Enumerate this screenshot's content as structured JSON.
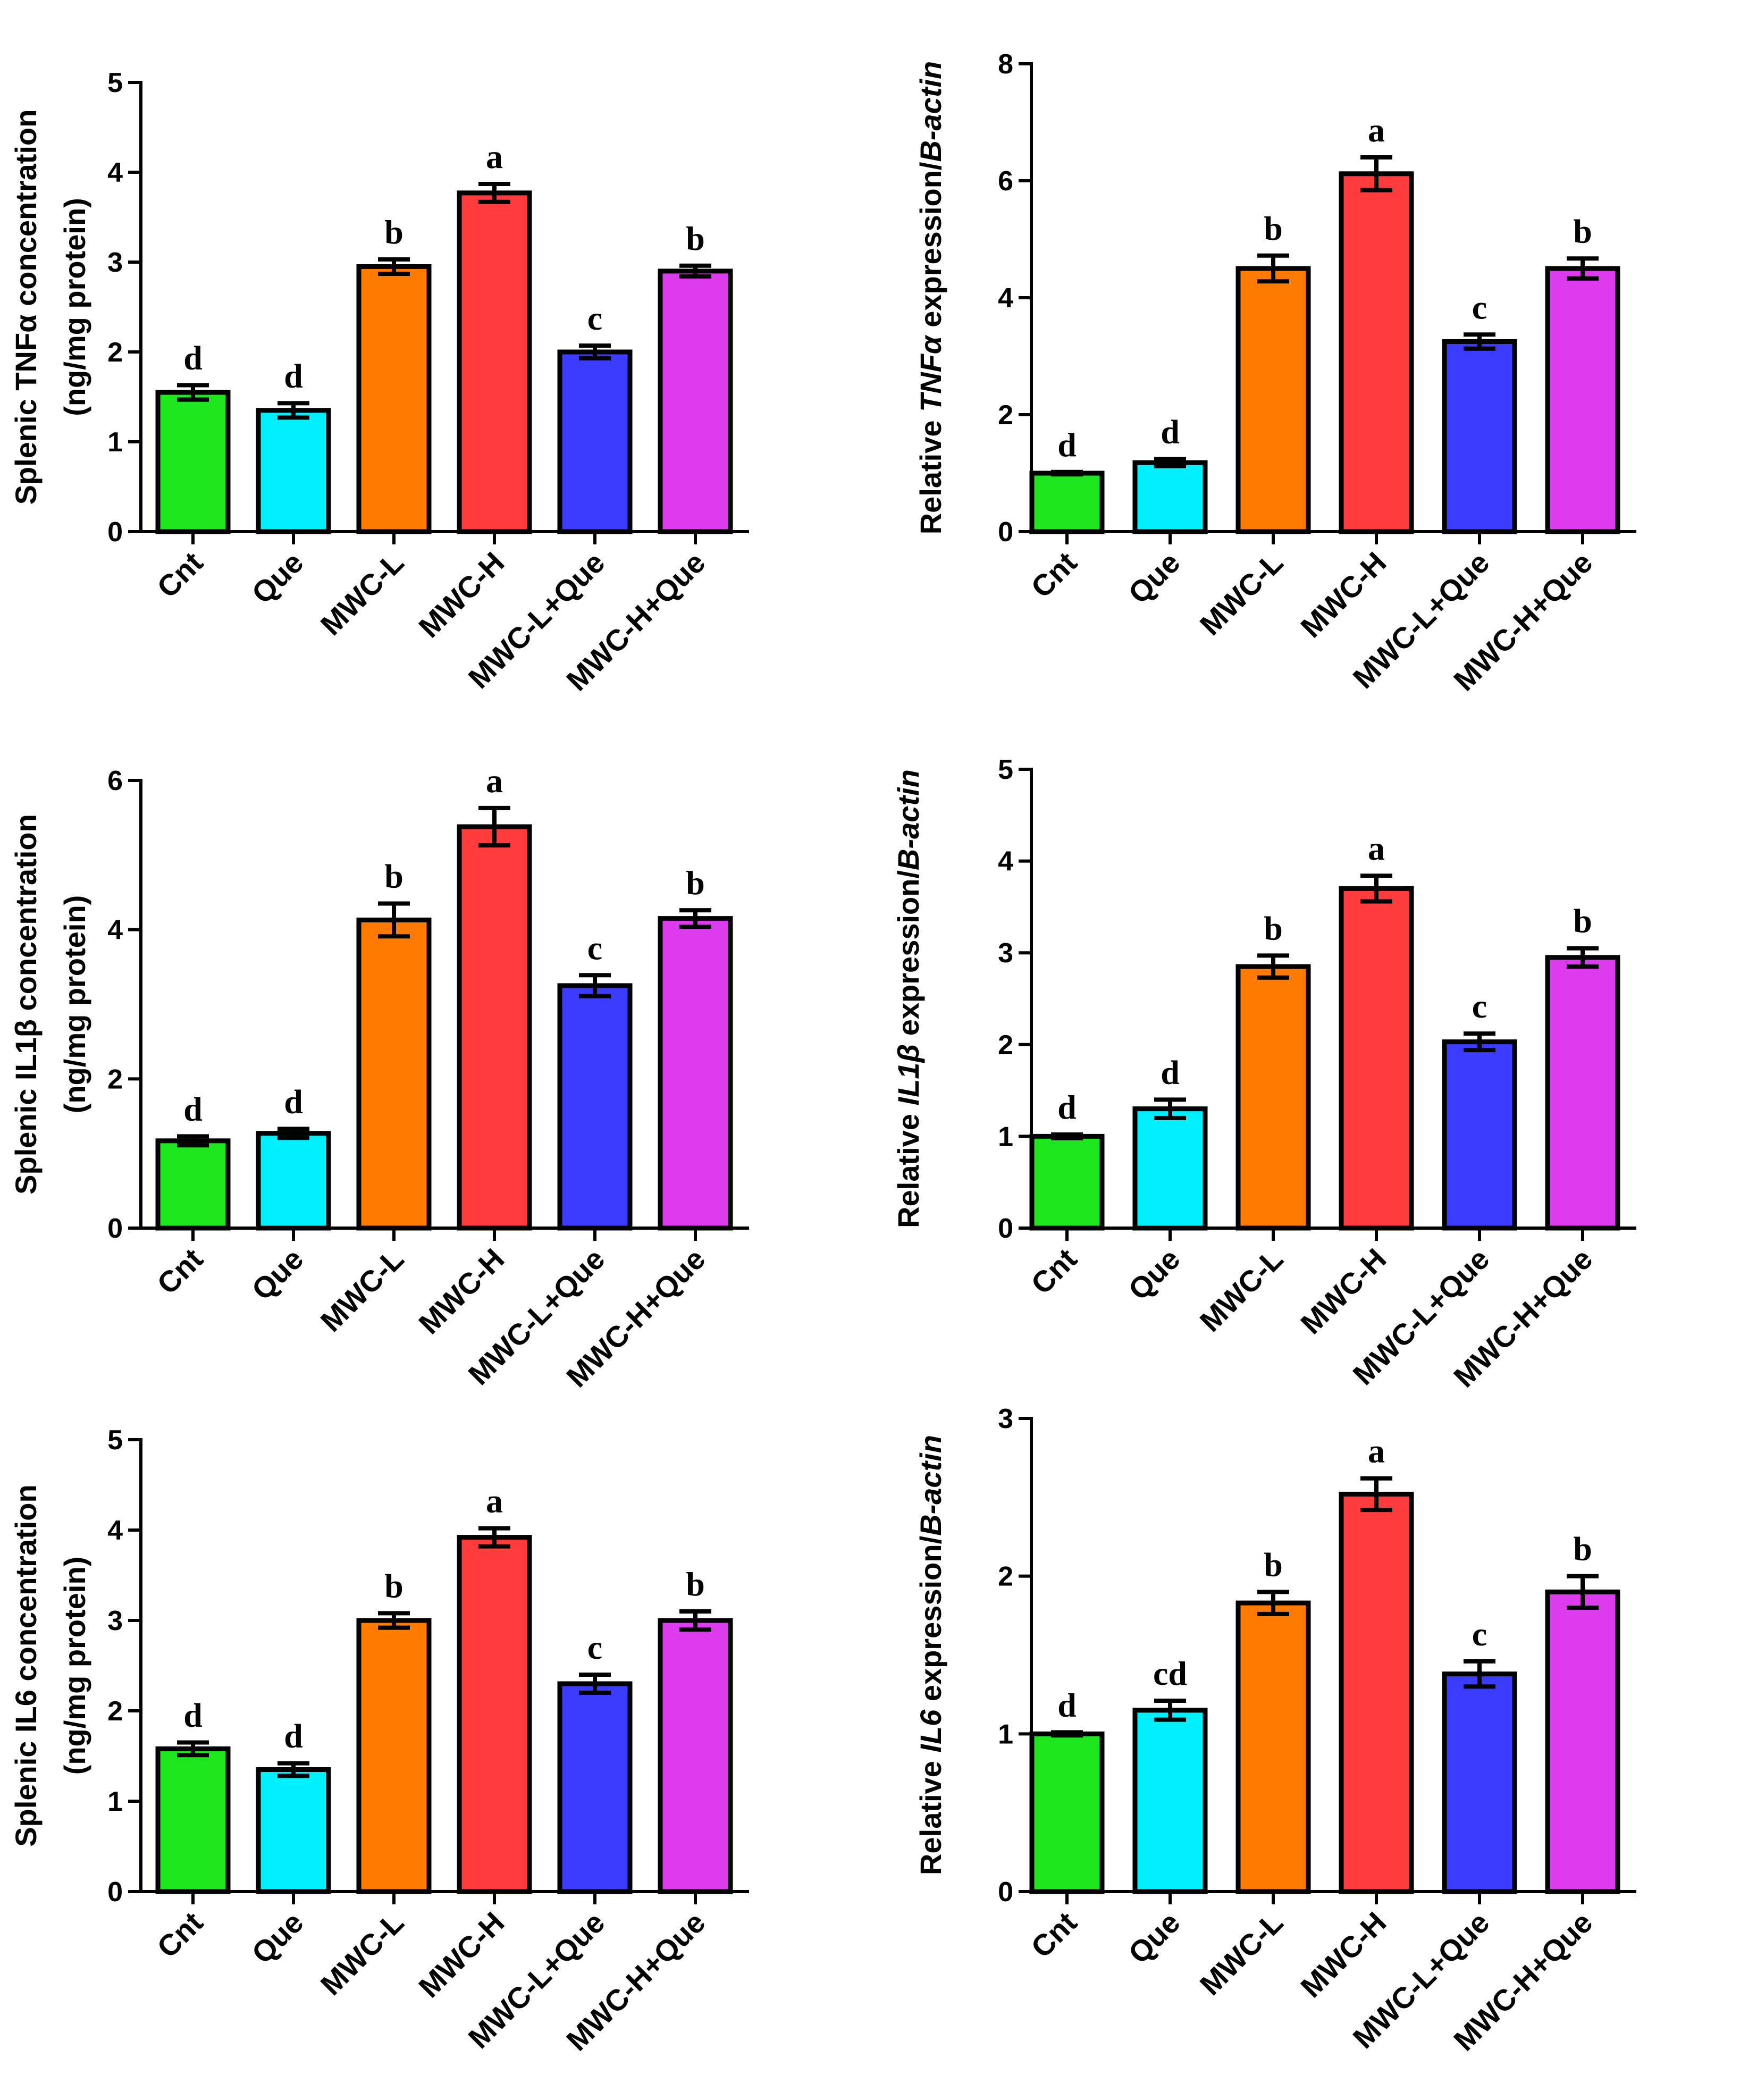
{
  "colors": {
    "Cnt": "#1ee61e",
    "Que": "#00f0ff",
    "MWC-L": "#ff7a00",
    "MWC-H": "#ff3c3c",
    "MWC-L+Que": "#3c3cff",
    "MWC-H+Que": "#dd3cee"
  },
  "chart_data": [
    {
      "type": "bar",
      "ylabel_lines": [
        [
          {
            "text": "Splenic TNF",
            "italic": false
          },
          {
            "text": "α",
            "italic": false
          },
          {
            "text": " concentration",
            "italic": false
          }
        ],
        [
          {
            "text": "(ng/mg protein)",
            "italic": false
          }
        ]
      ],
      "categories": [
        "Cnt",
        "Que",
        "MWC-L",
        "MWC-H",
        "MWC-L+Que",
        "MWC-H+Que"
      ],
      "values": [
        1.55,
        1.35,
        2.95,
        3.77,
        2.0,
        2.9
      ],
      "errors": [
        0.08,
        0.08,
        0.08,
        0.1,
        0.07,
        0.06
      ],
      "letters": [
        "d",
        "d",
        "b",
        "a",
        "c",
        "b"
      ],
      "ylim": [
        0,
        5
      ],
      "yticks": [
        0,
        1,
        2,
        3,
        4,
        5
      ]
    },
    {
      "type": "bar",
      "ylabel_lines": [
        [
          {
            "text": "Relative ",
            "italic": false
          },
          {
            "text": "TNFα",
            "italic": true
          },
          {
            "text": " expression/",
            "italic": false
          },
          {
            "text": "B-actin",
            "italic": true
          }
        ]
      ],
      "categories": [
        "Cnt",
        "Que",
        "MWC-L",
        "MWC-H",
        "MWC-L+Que",
        "MWC-H+Que"
      ],
      "values": [
        1.0,
        1.18,
        4.5,
        6.12,
        3.25,
        4.5
      ],
      "errors": [
        0.02,
        0.06,
        0.22,
        0.28,
        0.12,
        0.17
      ],
      "letters": [
        "d",
        "d",
        "b",
        "a",
        "c",
        "b"
      ],
      "ylim": [
        0,
        8
      ],
      "yticks": [
        0,
        2,
        4,
        6,
        8
      ]
    },
    {
      "type": "bar",
      "ylabel_lines": [
        [
          {
            "text": "Splenic IL1",
            "italic": false
          },
          {
            "text": "β",
            "italic": false
          },
          {
            "text": " concentration",
            "italic": false
          }
        ],
        [
          {
            "text": "(ng/mg protein)",
            "italic": false
          }
        ]
      ],
      "categories": [
        "Cnt",
        "Que",
        "MWC-L",
        "MWC-H",
        "MWC-L+Que",
        "MWC-H+Que"
      ],
      "values": [
        1.17,
        1.27,
        4.13,
        5.38,
        3.25,
        4.15
      ],
      "errors": [
        0.06,
        0.06,
        0.22,
        0.25,
        0.14,
        0.11
      ],
      "letters": [
        "d",
        "d",
        "b",
        "a",
        "c",
        "b"
      ],
      "ylim": [
        0,
        6
      ],
      "yticks": [
        0,
        2,
        4,
        6
      ]
    },
    {
      "type": "bar",
      "ylabel_lines": [
        [
          {
            "text": "Relative ",
            "italic": false
          },
          {
            "text": "IL1β",
            "italic": true
          },
          {
            "text": " expression/",
            "italic": false
          },
          {
            "text": "B-actin",
            "italic": true
          }
        ]
      ],
      "categories": [
        "Cnt",
        "Que",
        "MWC-L",
        "MWC-H",
        "MWC-L+Que",
        "MWC-H+Que"
      ],
      "values": [
        1.0,
        1.3,
        2.85,
        3.7,
        2.03,
        2.95
      ],
      "errors": [
        0.02,
        0.1,
        0.12,
        0.14,
        0.09,
        0.1
      ],
      "letters": [
        "d",
        "d",
        "b",
        "a",
        "c",
        "b"
      ],
      "ylim": [
        0,
        5
      ],
      "yticks": [
        0,
        1,
        2,
        3,
        4,
        5
      ]
    },
    {
      "type": "bar",
      "ylabel_lines": [
        [
          {
            "text": "Splenic IL6 concentration",
            "italic": false
          }
        ],
        [
          {
            "text": "(ng/mg protein)",
            "italic": false
          }
        ]
      ],
      "categories": [
        "Cnt",
        "Que",
        "MWC-L",
        "MWC-H",
        "MWC-L+Que",
        "MWC-H+Que"
      ],
      "values": [
        1.58,
        1.35,
        3.0,
        3.92,
        2.3,
        3.0
      ],
      "errors": [
        0.07,
        0.07,
        0.08,
        0.1,
        0.1,
        0.1
      ],
      "letters": [
        "d",
        "d",
        "b",
        "a",
        "c",
        "b"
      ],
      "ylim": [
        0,
        5
      ],
      "yticks": [
        0,
        1,
        2,
        3,
        4,
        5
      ]
    },
    {
      "type": "bar",
      "ylabel_lines": [
        [
          {
            "text": "Relative ",
            "italic": false
          },
          {
            "text": "IL6",
            "italic": true
          },
          {
            "text": " expression/",
            "italic": false
          },
          {
            "text": "B-actin",
            "italic": true
          }
        ]
      ],
      "categories": [
        "Cnt",
        "Que",
        "MWC-L",
        "MWC-H",
        "MWC-L+Que",
        "MWC-H+Que"
      ],
      "values": [
        1.0,
        1.15,
        1.83,
        2.52,
        1.38,
        1.9
      ],
      "errors": [
        0.01,
        0.06,
        0.07,
        0.1,
        0.08,
        0.1
      ],
      "letters": [
        "d",
        "cd",
        "b",
        "a",
        "c",
        "b"
      ],
      "ylim": [
        0,
        3
      ],
      "yticks": [
        0,
        1,
        2,
        3
      ]
    }
  ]
}
